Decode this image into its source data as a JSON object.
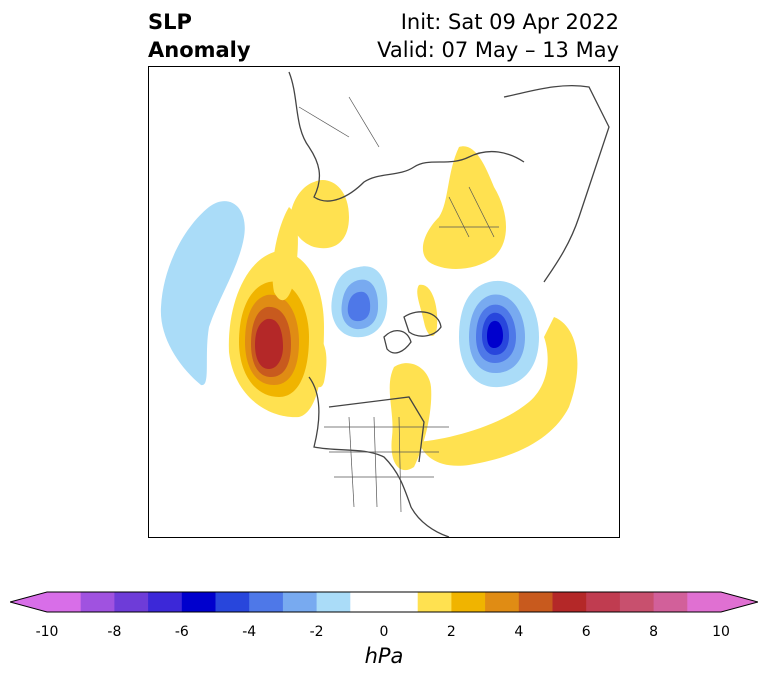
{
  "title": {
    "variable_line1": "SLP",
    "variable_line2": "Anomaly",
    "init": "Init: Sat 09 Apr 2022",
    "valid": "Valid: 07 May – 13 May"
  },
  "colorbar": {
    "unit": "hPa",
    "ticks": [
      "-10",
      "-8",
      "-6",
      "-4",
      "-2",
      "0",
      "2",
      "4",
      "6",
      "8",
      "10"
    ],
    "colors": [
      "#d86ee8",
      "#a052e0",
      "#6e3cd8",
      "#3c28d8",
      "#0000cd",
      "#2846dc",
      "#4e78e8",
      "#78aaf0",
      "#aadcf8",
      "#ffffff",
      "#ffffff",
      "#ffe150",
      "#f0b400",
      "#e08c14",
      "#c85a1e",
      "#b42828",
      "#c03c50",
      "#c8506e",
      "#d2609a",
      "#e070d2"
    ],
    "extend_low_color": "#d86ee8",
    "extend_high_color": "#e070d2"
  }
}
